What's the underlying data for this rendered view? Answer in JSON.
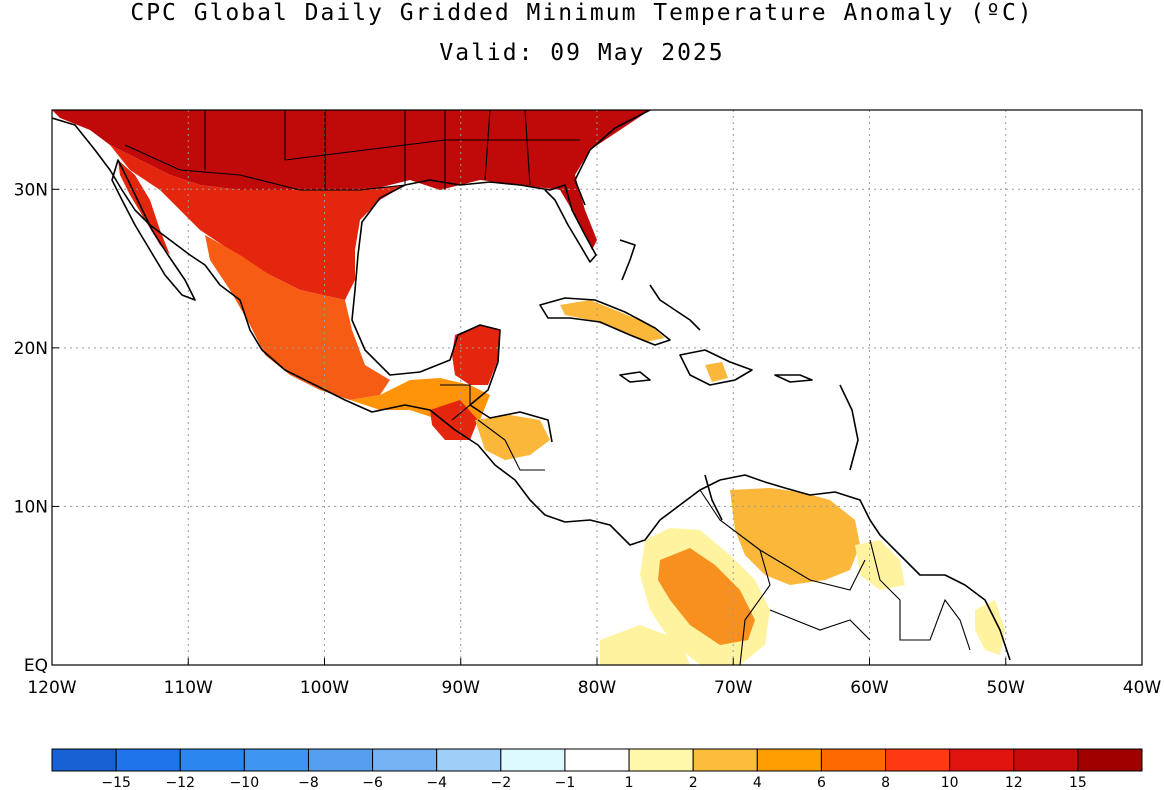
{
  "title": "CPC Global Daily Gridded Minimum Temperature Anomaly (ºC)",
  "subtitle": "Valid: 09 May 2025",
  "map": {
    "lon_range": [
      -120,
      -40
    ],
    "lat_range": [
      0,
      35
    ],
    "gridlines": "dotted",
    "lon_ticks": [
      {
        "value": -120,
        "label": "120W"
      },
      {
        "value": -110,
        "label": "110W"
      },
      {
        "value": -100,
        "label": "100W"
      },
      {
        "value": -90,
        "label": "90W"
      },
      {
        "value": -80,
        "label": "80W"
      },
      {
        "value": -70,
        "label": "70W"
      },
      {
        "value": -60,
        "label": "60W"
      },
      {
        "value": -50,
        "label": "50W"
      },
      {
        "value": -40,
        "label": "40W"
      }
    ],
    "lat_ticks": [
      {
        "value": 0,
        "label": "EQ"
      },
      {
        "value": 10,
        "label": "10N"
      },
      {
        "value": 20,
        "label": "20N"
      },
      {
        "value": 30,
        "label": "30N"
      }
    ],
    "anomaly_regions": [
      {
        "region": "southern-united-states",
        "level": 12,
        "color": "#c00a0a"
      },
      {
        "region": "northern-mexico",
        "level": 10,
        "color": "#e5260e"
      },
      {
        "region": "central-mexico",
        "level": 8,
        "color": "#f75c14"
      },
      {
        "region": "southern-mexico",
        "level": 6,
        "color": "#ff9408"
      },
      {
        "region": "yucatan",
        "level": 10,
        "color": "#e5260e"
      },
      {
        "region": "honduras",
        "level": 4,
        "color": "#fbb73a"
      },
      {
        "region": "cuba",
        "level": 4,
        "color": "#fbb73a"
      },
      {
        "region": "venezuela",
        "level": 4,
        "color": "#fbb73a"
      },
      {
        "region": "colombia",
        "level": 6,
        "color": "#f7901e"
      },
      {
        "region": "guyana",
        "level": 1,
        "color": "#fff3a0"
      }
    ]
  },
  "colorbar": {
    "colors": [
      "#1861d4",
      "#1f74ec",
      "#2b86f0",
      "#3e96f2",
      "#569ff0",
      "#76b3f4",
      "#9fcff8",
      "#ddfaff",
      "#ffffff",
      "#fff8a8",
      "#fbbd3b",
      "#ff9e00",
      "#ff6a00",
      "#ff3a12",
      "#e0150f",
      "#c80a0a",
      "#a00000"
    ],
    "labels": [
      "−15",
      "−12",
      "−10",
      "−8",
      "−6",
      "−4",
      "−2",
      "−1",
      "1",
      "2",
      "4",
      "6",
      "8",
      "10",
      "12",
      "15"
    ]
  }
}
